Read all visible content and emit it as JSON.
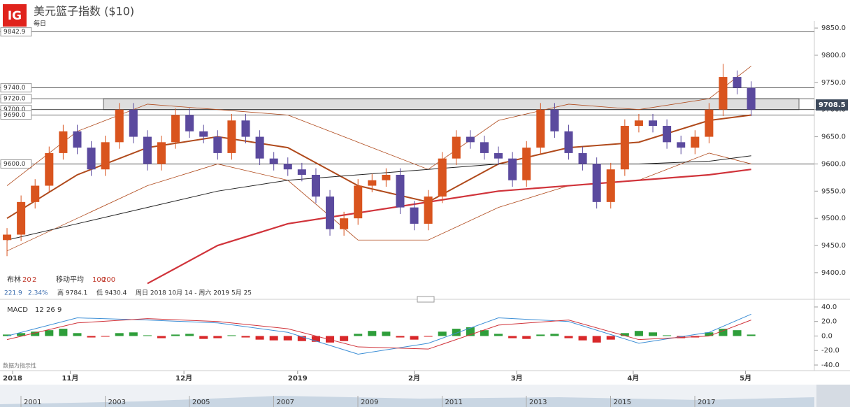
{
  "header": {
    "logo": "IG",
    "title": "美元篮子指数 ($10)",
    "interval": "每日"
  },
  "chart_data": [
    {
      "type": "candlestick",
      "name": "price",
      "xlim": [
        -0.5,
        57.5
      ],
      "xticks": [
        {
          "value": 0.4,
          "label": "2018"
        },
        {
          "value": 4.5,
          "label": "11月"
        },
        {
          "value": 12.6,
          "label": "12月"
        },
        {
          "value": 20.7,
          "label": "2019"
        },
        {
          "value": 29,
          "label": "2月"
        },
        {
          "value": 36.3,
          "label": "3月"
        },
        {
          "value": 44.6,
          "label": "4月"
        },
        {
          "value": 52.6,
          "label": "5月"
        }
      ],
      "ylim": [
        9351,
        9863
      ],
      "yticks": [
        {
          "value": 9850,
          "label": "9850.0"
        },
        {
          "value": 9800,
          "label": "9800.0"
        },
        {
          "value": 9750,
          "label": "9750.0"
        },
        {
          "value": 9700,
          "label": "9700.0"
        },
        {
          "value": 9650,
          "label": "9650.0"
        },
        {
          "value": 9600,
          "label": "9600.0"
        },
        {
          "value": 9550,
          "label": "9550.0"
        },
        {
          "value": 9500,
          "label": "9500.0"
        },
        {
          "value": 9450,
          "label": "9450.0"
        },
        {
          "value": 9400,
          "label": "9400.0"
        }
      ],
      "up_color": "#d9541e",
      "down_color": "#5b4a9e",
      "open": [
        9460,
        9470,
        9530,
        9560,
        9620,
        9660,
        9630,
        9590,
        9640,
        9700,
        9650,
        9600,
        9640,
        9690,
        9660,
        9650,
        9620,
        9680,
        9650,
        9610,
        9600,
        9590,
        9580,
        9540,
        9480,
        9500,
        9560,
        9570,
        9580,
        9520,
        9490,
        9540,
        9610,
        9650,
        9640,
        9620,
        9610,
        9570,
        9630,
        9700,
        9660,
        9620,
        9600,
        9530,
        9590,
        9670,
        9680,
        9670,
        9640,
        9630,
        9650,
        9700,
        9760,
        9740
      ],
      "high": [
        9482,
        9542,
        9572,
        9632,
        9672,
        9672,
        9642,
        9652,
        9712,
        9712,
        9662,
        9652,
        9702,
        9702,
        9672,
        9662,
        9692,
        9692,
        9662,
        9622,
        9612,
        9602,
        9592,
        9552,
        9512,
        9572,
        9582,
        9592,
        9592,
        9532,
        9552,
        9622,
        9662,
        9662,
        9652,
        9632,
        9622,
        9642,
        9712,
        9712,
        9672,
        9632,
        9612,
        9602,
        9682,
        9692,
        9692,
        9682,
        9652,
        9662,
        9712,
        9784.1,
        9772,
        9752
      ],
      "low": [
        9430.4,
        9458,
        9518,
        9548,
        9608,
        9618,
        9578,
        9578,
        9628,
        9638,
        9588,
        9588,
        9628,
        9648,
        9638,
        9608,
        9608,
        9638,
        9598,
        9588,
        9578,
        9568,
        9528,
        9468,
        9468,
        9488,
        9548,
        9558,
        9508,
        9478,
        9478,
        9528,
        9598,
        9628,
        9608,
        9598,
        9558,
        9558,
        9618,
        9648,
        9608,
        9588,
        9518,
        9518,
        9578,
        9658,
        9658,
        9628,
        9618,
        9618,
        9638,
        9688,
        9728,
        9688
      ],
      "close": [
        9470,
        9530,
        9560,
        9620,
        9660,
        9630,
        9590,
        9640,
        9700,
        9650,
        9600,
        9640,
        9690,
        9660,
        9650,
        9620,
        9680,
        9650,
        9610,
        9600,
        9590,
        9580,
        9540,
        9480,
        9500,
        9560,
        9570,
        9580,
        9520,
        9490,
        9540,
        9610,
        9650,
        9640,
        9620,
        9610,
        9570,
        9630,
        9700,
        9660,
        9620,
        9600,
        9530,
        9590,
        9670,
        9680,
        9670,
        9640,
        9630,
        9650,
        9700,
        9760,
        9740,
        9700
      ],
      "lines": [
        {
          "color": "#b04a1c",
          "width": 2,
          "x": [
            0,
            5,
            10,
            15,
            20,
            25,
            30,
            35,
            40,
            45,
            50,
            53
          ],
          "values": [
            9500,
            9580,
            9630,
            9650,
            9630,
            9560,
            9530,
            9600,
            9630,
            9640,
            9680,
            9690
          ]
        },
        {
          "color": "#b04a1c",
          "width": 0.8,
          "x": [
            0,
            5,
            10,
            15,
            20,
            25,
            30,
            35,
            40,
            45,
            50,
            53
          ],
          "values": [
            9560,
            9660,
            9710,
            9700,
            9690,
            9640,
            9590,
            9680,
            9710,
            9700,
            9720,
            9780
          ]
        },
        {
          "color": "#b04a1c",
          "width": 0.8,
          "x": [
            0,
            5,
            10,
            15,
            20,
            25,
            30,
            35,
            40,
            45,
            50,
            53
          ],
          "values": [
            9440,
            9500,
            9560,
            9600,
            9570,
            9460,
            9460,
            9520,
            9560,
            9570,
            9620,
            9600
          ]
        },
        {
          "color": "#222222",
          "width": 1,
          "x": [
            0,
            5,
            10,
            15,
            20,
            25,
            30,
            35,
            40,
            45,
            50,
            53
          ],
          "values": [
            9460,
            9490,
            9520,
            9550,
            9570,
            9580,
            9590,
            9600,
            9600,
            9600,
            9605,
            9615
          ]
        },
        {
          "color": "#d0333a",
          "width": 2.2,
          "x": [
            10,
            15,
            20,
            25,
            30,
            35,
            40,
            45,
            50,
            53
          ],
          "values": [
            9380,
            9450,
            9490,
            9510,
            9530,
            9550,
            9560,
            9570,
            9580,
            9590
          ]
        }
      ],
      "levels": [
        {
          "value": 9842.9,
          "label": "9842.9"
        },
        {
          "value": 9740,
          "label": "9740.0"
        },
        {
          "value": 9720,
          "label": "9720.0"
        },
        {
          "value": 9700,
          "label": "9700.0"
        },
        {
          "value": 9690,
          "label": "9690.0"
        },
        {
          "value": 9600,
          "label": "9600.0"
        }
      ],
      "zone": [
        9700,
        9720
      ],
      "last": {
        "value": 9708.5,
        "label": "9708.5"
      },
      "legend": [
        [
          "布林",
          "20",
          "2"
        ],
        [
          "移动平均",
          "100",
          "200"
        ]
      ],
      "info": [
        "221.9",
        "2.34%",
        "高 9784.1",
        "低 9430.4",
        "周日 2018 10月 14 - 周六 2019 5月 25"
      ]
    },
    {
      "type": "macd",
      "name": "MACD",
      "params": [
        "MACD",
        "12",
        "26",
        "9"
      ],
      "ylim": [
        -47.7,
        46.7
      ],
      "yticks": [
        {
          "value": 40,
          "label": "40.0"
        },
        {
          "value": 20,
          "label": "20.0"
        },
        {
          "value": 0,
          "label": "0.0"
        },
        {
          "value": -20,
          "label": "-20.0"
        },
        {
          "value": -40,
          "label": "-40.0"
        }
      ],
      "up_color": "#2e9e3a",
      "down_color": "#d8282a",
      "histogram": [
        2,
        4,
        6,
        8,
        10,
        4,
        -2,
        -1,
        4,
        5,
        1,
        -3,
        2,
        3,
        -4,
        -3,
        1,
        -2,
        -5,
        -6,
        -6,
        -7,
        -8,
        -9,
        -7,
        3,
        7,
        6,
        -2,
        -5,
        -1,
        6,
        10,
        12,
        8,
        3,
        -3,
        -4,
        2,
        3,
        -3,
        -6,
        -9,
        -5,
        4,
        7,
        5,
        1,
        -3,
        -2,
        5,
        10,
        8,
        2
      ],
      "lines": [
        {
          "color": "#3d8fd6",
          "x": [
            0,
            5,
            10,
            15,
            20,
            25,
            30,
            35,
            40,
            45,
            50,
            53
          ],
          "values": [
            0,
            25,
            22,
            18,
            5,
            -25,
            -10,
            25,
            20,
            -10,
            5,
            30
          ]
        },
        {
          "color": "#d0333a",
          "x": [
            0,
            5,
            10,
            15,
            20,
            25,
            30,
            35,
            40,
            45,
            50,
            53
          ],
          "values": [
            -5,
            18,
            24,
            20,
            10,
            -15,
            -18,
            15,
            22,
            -5,
            0,
            22
          ]
        }
      ],
      "note": "数据为指示性"
    }
  ],
  "navigator": {
    "years": [
      "2001",
      "2003",
      "2005",
      "2007",
      "2009",
      "2011",
      "2013",
      "2015",
      "2017"
    ]
  }
}
